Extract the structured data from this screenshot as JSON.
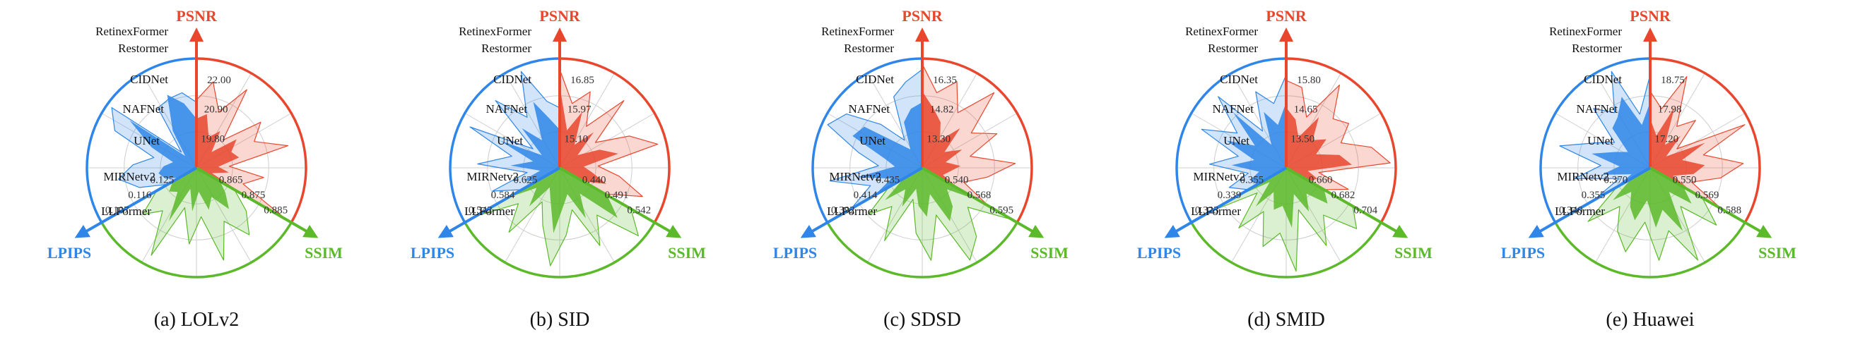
{
  "colors": {
    "psnr": "#e8472e",
    "ssim": "#5bb92a",
    "lpips": "#2f86e8",
    "grid": "#cfcfcf",
    "text": "#111111"
  },
  "axis_names": {
    "psnr": "PSNR",
    "ssim": "SSIM",
    "lpips": "LPIPS"
  },
  "methods": [
    "RetinexFormer",
    "Restormer",
    "CIDNet",
    "NAFNet",
    "UNet",
    "MIRNetv2",
    "LLFormer"
  ],
  "chart_data": [
    {
      "type": "radar",
      "caption": "(a) LOLv2",
      "metrics": {
        "psnr": {
          "ticks": [
            "19.80",
            "20.90",
            "22.00"
          ]
        },
        "ssim": {
          "ticks": [
            "0.865",
            "0.875",
            "0.885"
          ]
        },
        "lpips": {
          "ticks": [
            "0.125",
            "0.116",
            "0.107"
          ]
        }
      }
    },
    {
      "type": "radar",
      "caption": "(b) SID",
      "metrics": {
        "psnr": {
          "ticks": [
            "15.10",
            "15.97",
            "16.85"
          ]
        },
        "ssim": {
          "ticks": [
            "0.440",
            "0.491",
            "0.542"
          ]
        },
        "lpips": {
          "ticks": [
            "0.625",
            "0.584",
            "0.542"
          ]
        }
      }
    },
    {
      "type": "radar",
      "caption": "(c) SDSD",
      "metrics": {
        "psnr": {
          "ticks": [
            "13.30",
            "14.82",
            "16.35"
          ]
        },
        "ssim": {
          "ticks": [
            "0.540",
            "0.568",
            "0.595"
          ]
        },
        "lpips": {
          "ticks": [
            "0.435",
            "0.414",
            "0.392"
          ]
        }
      }
    },
    {
      "type": "radar",
      "caption": "(d) SMID",
      "metrics": {
        "psnr": {
          "ticks": [
            "13.50",
            "14.65",
            "15.80"
          ]
        },
        "ssim": {
          "ticks": [
            "0.660",
            "0.682",
            "0.704"
          ]
        },
        "lpips": {
          "ticks": [
            "0.355",
            "0.339",
            "0.323"
          ]
        }
      }
    },
    {
      "type": "radar",
      "caption": "(e) Huawei",
      "metrics": {
        "psnr": {
          "ticks": [
            "17.20",
            "17.98",
            "18.75"
          ]
        },
        "ssim": {
          "ticks": [
            "0.550",
            "0.569",
            "0.588"
          ]
        },
        "lpips": {
          "ticks": [
            "0.370",
            "0.355",
            "0.340"
          ]
        }
      }
    }
  ]
}
